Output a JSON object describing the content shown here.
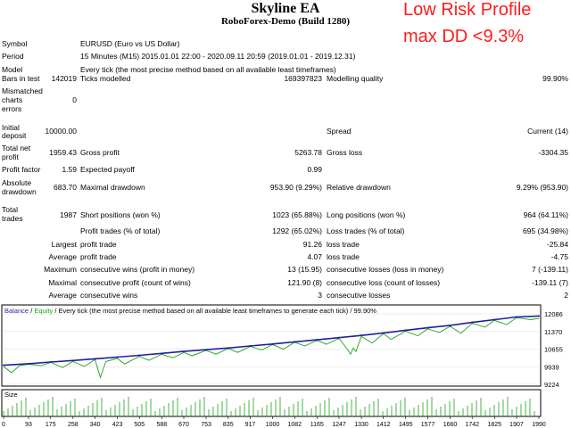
{
  "header": {
    "title": "Skyline EA",
    "subtitle": "RoboForex-Demo (Build 1280)",
    "promo_line1": "Low Risk Profile",
    "promo_line2": "max DD <9.3%"
  },
  "report": {
    "symbol_label": "Symbol",
    "symbol_value": "EURUSD (Euro vs US Dollar)",
    "period_label": "Period",
    "period_value": "15 Minutes (M15) 2015.01.01 22:00 - 2020.09.11 20:59 (2019.01.01 - 2019.12.31)",
    "model_label": "Model",
    "model_value": "Every tick (the most precise method based on all available least timeframes)",
    "bars_label": "Bars in test",
    "bars_value": "142019",
    "ticks_label": "Ticks modelled",
    "ticks_value": "169397823",
    "quality_label": "Modelling quality",
    "quality_value": "99.90%",
    "mismatch_label1": "Mismatched",
    "mismatch_label2": "charts",
    "mismatch_label3": "errors",
    "mismatch_value": "0",
    "deposit_label1": "Initial",
    "deposit_label2": "deposit",
    "deposit_value": "10000.00",
    "spread_label": "Spread",
    "spread_value": "Current (14)",
    "netprofit_label1": "Total net",
    "netprofit_label2": "profit",
    "netprofit_value": "1959.43",
    "grossprofit_label": "Gross profit",
    "grossprofit_value": "5263.78",
    "grossloss_label": "Gross loss",
    "grossloss_value": "-3304.35",
    "pf_label": "Profit factor",
    "pf_value": "1.59",
    "payoff_label": "Expected payoff",
    "payoff_value": "0.99",
    "absdd_label1": "Absolute",
    "absdd_label2": "drawdown",
    "absdd_value": "683.70",
    "maxdd_label": "Maximal drawdown",
    "maxdd_value": "953.90 (9.29%)",
    "reldd_label": "Relative drawdown",
    "reldd_value": "9.29% (953.90)",
    "trades_label1": "Total",
    "trades_label2": "trades",
    "trades_value": "1987",
    "short_label": "Short positions (won %)",
    "short_value": "1023 (65.88%)",
    "long_label": "Long positions (won %)",
    "long_value": "964 (64.11%)",
    "profit_trades_label": "Profit trades (% of total)",
    "profit_trades_value": "1292 (65.02%)",
    "loss_trades_label": "Loss trades (% of total)",
    "loss_trades_value": "695 (34.98%)",
    "largest_label": "Largest",
    "largest_profit_label": "profit trade",
    "largest_profit_value": "91.26",
    "largest_loss_label": "loss trade",
    "largest_loss_value": "-25.84",
    "average_label": "Average",
    "average_profit_label": "profit trade",
    "average_profit_value": "4.07",
    "average_loss_label": "loss trade",
    "average_loss_value": "-4.75",
    "maximum_label": "Maximum",
    "max_wins_label": "consecutive wins (profit in money)",
    "max_wins_value": "13 (15.95)",
    "max_losses_label": "consecutive losses (loss in money)",
    "max_losses_value": "7 (-139.11)",
    "maximal_label": "Maximal",
    "maximal_profit_label": "consecutive profit (count of wins)",
    "maximal_profit_value": "121.90 (8)",
    "maximal_loss_label": "consecutive loss (count of losses)",
    "maximal_loss_value": "-139.11 (7)",
    "average2_label": "Average",
    "avg_wins_label": "consecutive wins",
    "avg_wins_value": "3",
    "avg_losses_label": "consecutive losses",
    "avg_losses_value": "2"
  },
  "chart_data": {
    "type": "line",
    "legend": {
      "balance": "Balance",
      "sep1": " / ",
      "equity": "Equity",
      "sep2": " / ",
      "description": "Every tick (the most precise method based on all available least timeframes to generate each tick)",
      "sep3": " / ",
      "quality": "99.90%"
    },
    "y_ticks": [
      "12086",
      "11370",
      "10655",
      "9939",
      "9224"
    ],
    "ylim": [
      9224,
      12086
    ],
    "x_ticks": [
      "0",
      "93",
      "175",
      "258",
      "340",
      "423",
      "505",
      "588",
      "670",
      "753",
      "835",
      "917",
      "1000",
      "1082",
      "1165",
      "1247",
      "1330",
      "1412",
      "1495",
      "1577",
      "1660",
      "1742",
      "1825",
      "1907",
      "1990"
    ],
    "xlim": [
      0,
      1990
    ],
    "size_label": "Size",
    "series": [
      {
        "name": "Balance",
        "color": "#1f1f9e",
        "x": [
          0,
          93,
          175,
          258,
          340,
          423,
          505,
          588,
          670,
          753,
          835,
          917,
          1000,
          1082,
          1165,
          1247,
          1330,
          1412,
          1495,
          1577,
          1660,
          1742,
          1825,
          1907,
          1990
        ],
        "values": [
          10000,
          10060,
          10130,
          10190,
          10260,
          10330,
          10400,
          10480,
          10560,
          10630,
          10700,
          10780,
          10860,
          10950,
          11030,
          11120,
          11210,
          11310,
          11420,
          11520,
          11620,
          11740,
          11850,
          11960,
          12000
        ]
      },
      {
        "name": "Equity",
        "color": "#1aa31a",
        "x": [
          0,
          30,
          60,
          93,
          140,
          175,
          220,
          258,
          300,
          340,
          360,
          380,
          423,
          450,
          505,
          540,
          588,
          630,
          670,
          700,
          753,
          790,
          835,
          870,
          917,
          960,
          1000,
          1040,
          1082,
          1120,
          1165,
          1200,
          1247,
          1280,
          1290,
          1300,
          1310,
          1330,
          1370,
          1412,
          1440,
          1495,
          1540,
          1577,
          1620,
          1660,
          1700,
          1742,
          1790,
          1825,
          1870,
          1907,
          1960,
          1990
        ],
        "values": [
          9950,
          9700,
          9990,
          10040,
          9980,
          10110,
          9900,
          10160,
          9950,
          10230,
          9500,
          10150,
          10280,
          10050,
          10360,
          10200,
          10440,
          10300,
          10520,
          10380,
          10600,
          10450,
          10680,
          10520,
          10760,
          10620,
          10840,
          10650,
          10930,
          10780,
          11010,
          10850,
          11090,
          10620,
          10450,
          10700,
          10560,
          11170,
          10900,
          11280,
          11050,
          11380,
          11200,
          11480,
          11330,
          11580,
          11300,
          11700,
          11550,
          11820,
          11650,
          11930,
          11850,
          11900
        ]
      }
    ],
    "size_ticks_count": 17
  }
}
